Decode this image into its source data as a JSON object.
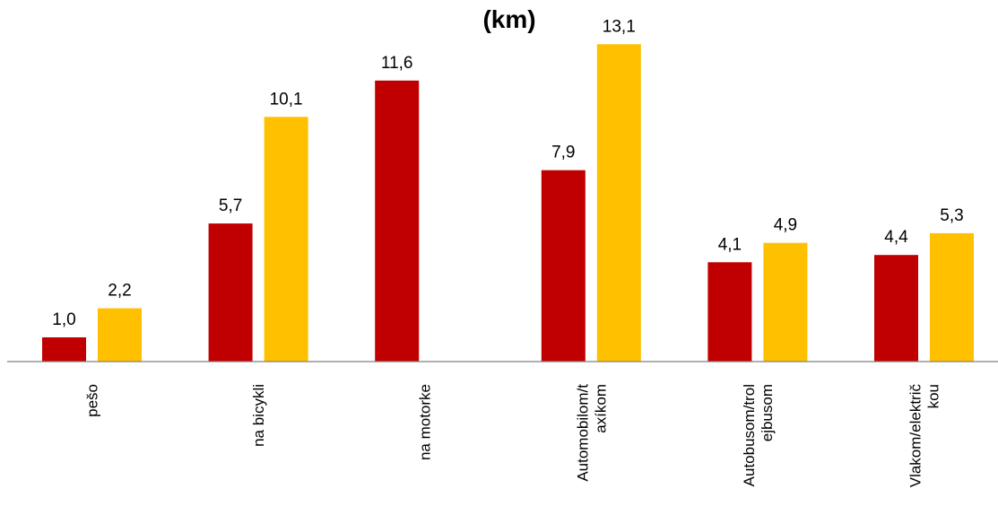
{
  "chart_data": {
    "type": "bar",
    "title": "(km)",
    "categories": [
      [
        "pešo"
      ],
      [
        "na bicykli"
      ],
      [
        "na motorke"
      ],
      [
        "Automobilom/t",
        "axíkom"
      ],
      [
        "Autobusom/trol",
        "ejbusom"
      ],
      [
        "Vlakom/električ",
        "kou"
      ]
    ],
    "series": [
      {
        "color": "#C00000",
        "values": [
          1.0,
          5.7,
          11.6,
          7.9,
          4.1,
          4.4
        ],
        "labels": [
          "1,0",
          "5,7",
          "11,6",
          "7,9",
          "4,1",
          "4,4"
        ]
      },
      {
        "color": "#FFC000",
        "values": [
          2.2,
          10.1,
          null,
          13.1,
          4.9,
          5.3
        ],
        "labels": [
          "2,2",
          "10,1",
          "",
          "13,1",
          "4,9",
          "5,3"
        ]
      }
    ],
    "ylim": [
      0,
      14.26
    ],
    "grid": false,
    "legend": "none"
  }
}
